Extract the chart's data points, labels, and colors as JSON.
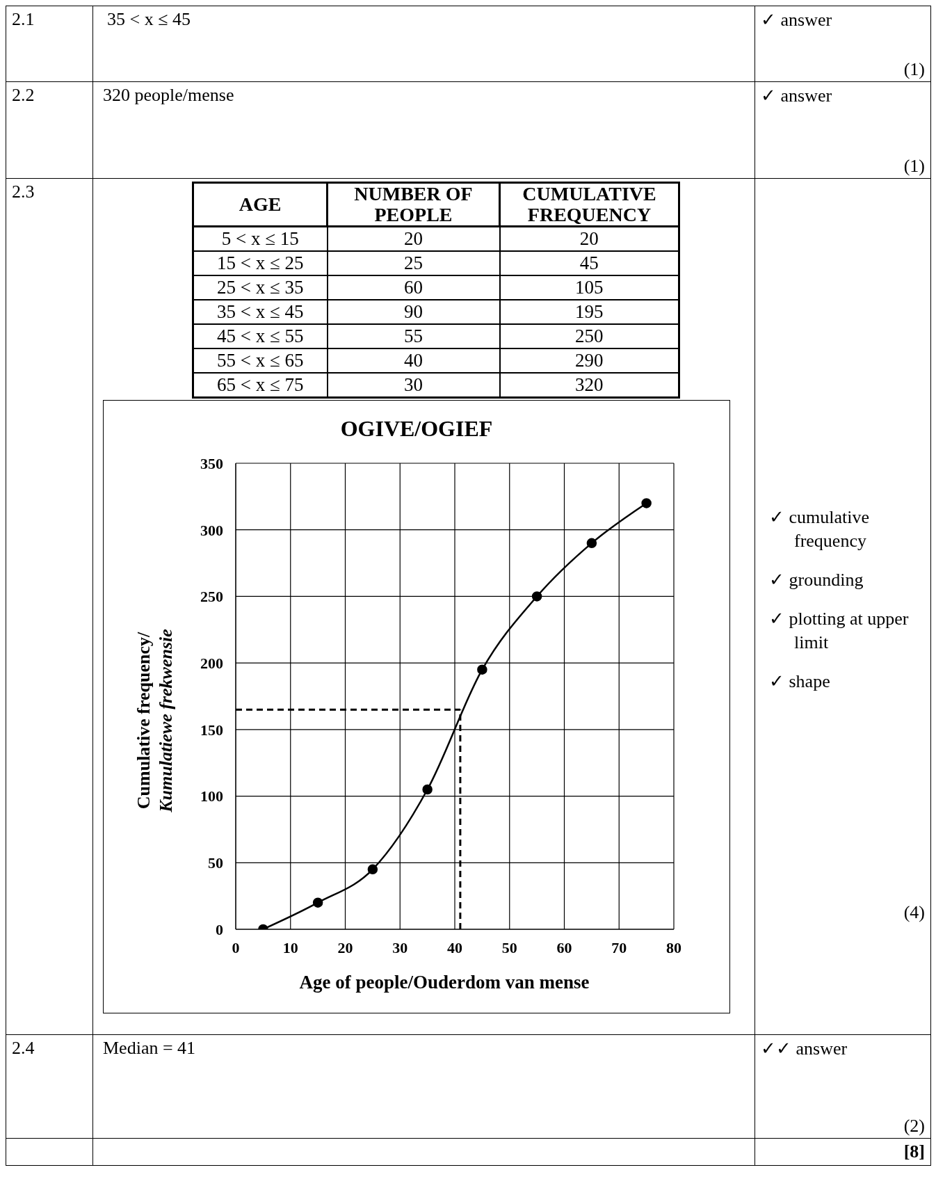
{
  "chart_data": {
    "type": "line",
    "title": "OGIVE/OGIEF",
    "xlabel": "Age of  people/Ouderdom van mense",
    "ylabel": "Cumulative frequency/Kumulatiewe frekwensie",
    "x": [
      5,
      15,
      25,
      35,
      45,
      55,
      65,
      75
    ],
    "values": [
      0,
      20,
      45,
      105,
      195,
      250,
      290,
      320
    ],
    "color": "#000000",
    "marker": "circle",
    "line_style": "solid",
    "grid": true,
    "xlim": [
      0,
      80
    ],
    "xticks": [
      0,
      10,
      20,
      30,
      40,
      50,
      60,
      70,
      80
    ],
    "ylim": [
      0,
      350
    ],
    "yticks": [
      0,
      50,
      100,
      150,
      200,
      250,
      300,
      350
    ],
    "ref_lines": [
      {
        "axis": "y",
        "value": 165,
        "line_style": "dashed",
        "color": "#000000"
      },
      {
        "axis": "x",
        "value": 41,
        "line_style": "dashed",
        "color": "#000000"
      }
    ],
    "annotations": [
      "2.1",
      "35 < x ≤ 45",
      "✓ answer",
      "(1)",
      "2.2",
      "320 people/mense",
      "✓ answer",
      "(1)",
      "2.3",
      "AGE",
      "NUMBER OF PEOPLE",
      "CUMULATIVE FREQUENCY",
      "5 < x ≤ 15",
      "20",
      "20",
      "15 < x ≤ 25",
      "25",
      "45",
      "25 < x ≤ 35",
      "60",
      "105",
      "35 < x ≤ 45",
      "90",
      "195",
      "45 < x ≤ 55",
      "55",
      "250",
      "55 < x ≤ 65",
      "40",
      "290",
      "65 < x ≤ 75",
      "30",
      "320",
      "✓ cumulative frequency",
      "✓ grounding",
      "✓ plotting at upper limit",
      "✓ shape",
      "(4)",
      "2.4",
      "Median = 41",
      "✓✓ answer",
      "(2)",
      "[8]"
    ]
  }
}
